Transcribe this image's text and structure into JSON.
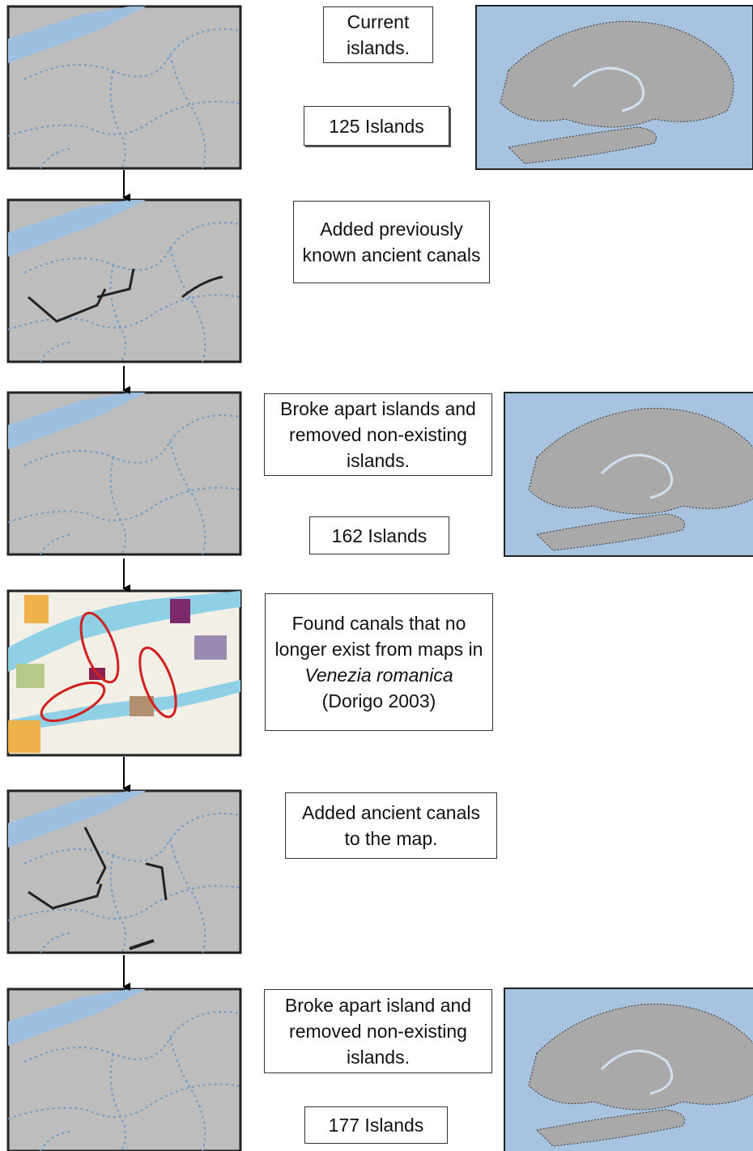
{
  "steps": [
    {
      "text": "Current islands.",
      "count": "125 Islands"
    },
    {
      "text": "Added previously known ancient canals"
    },
    {
      "text": "Broke apart islands and removed non-existing islands.",
      "count": "162 Islands"
    },
    {
      "text_parts": [
        "Found canals that no longer exist from maps in",
        "Venezia",
        "romanica",
        "(Dorigo 2003)"
      ]
    },
    {
      "text": "Added ancient canals to the map."
    },
    {
      "text": "Broke apart island and removed non-existing islands.",
      "count": "177 Islands"
    }
  ]
}
